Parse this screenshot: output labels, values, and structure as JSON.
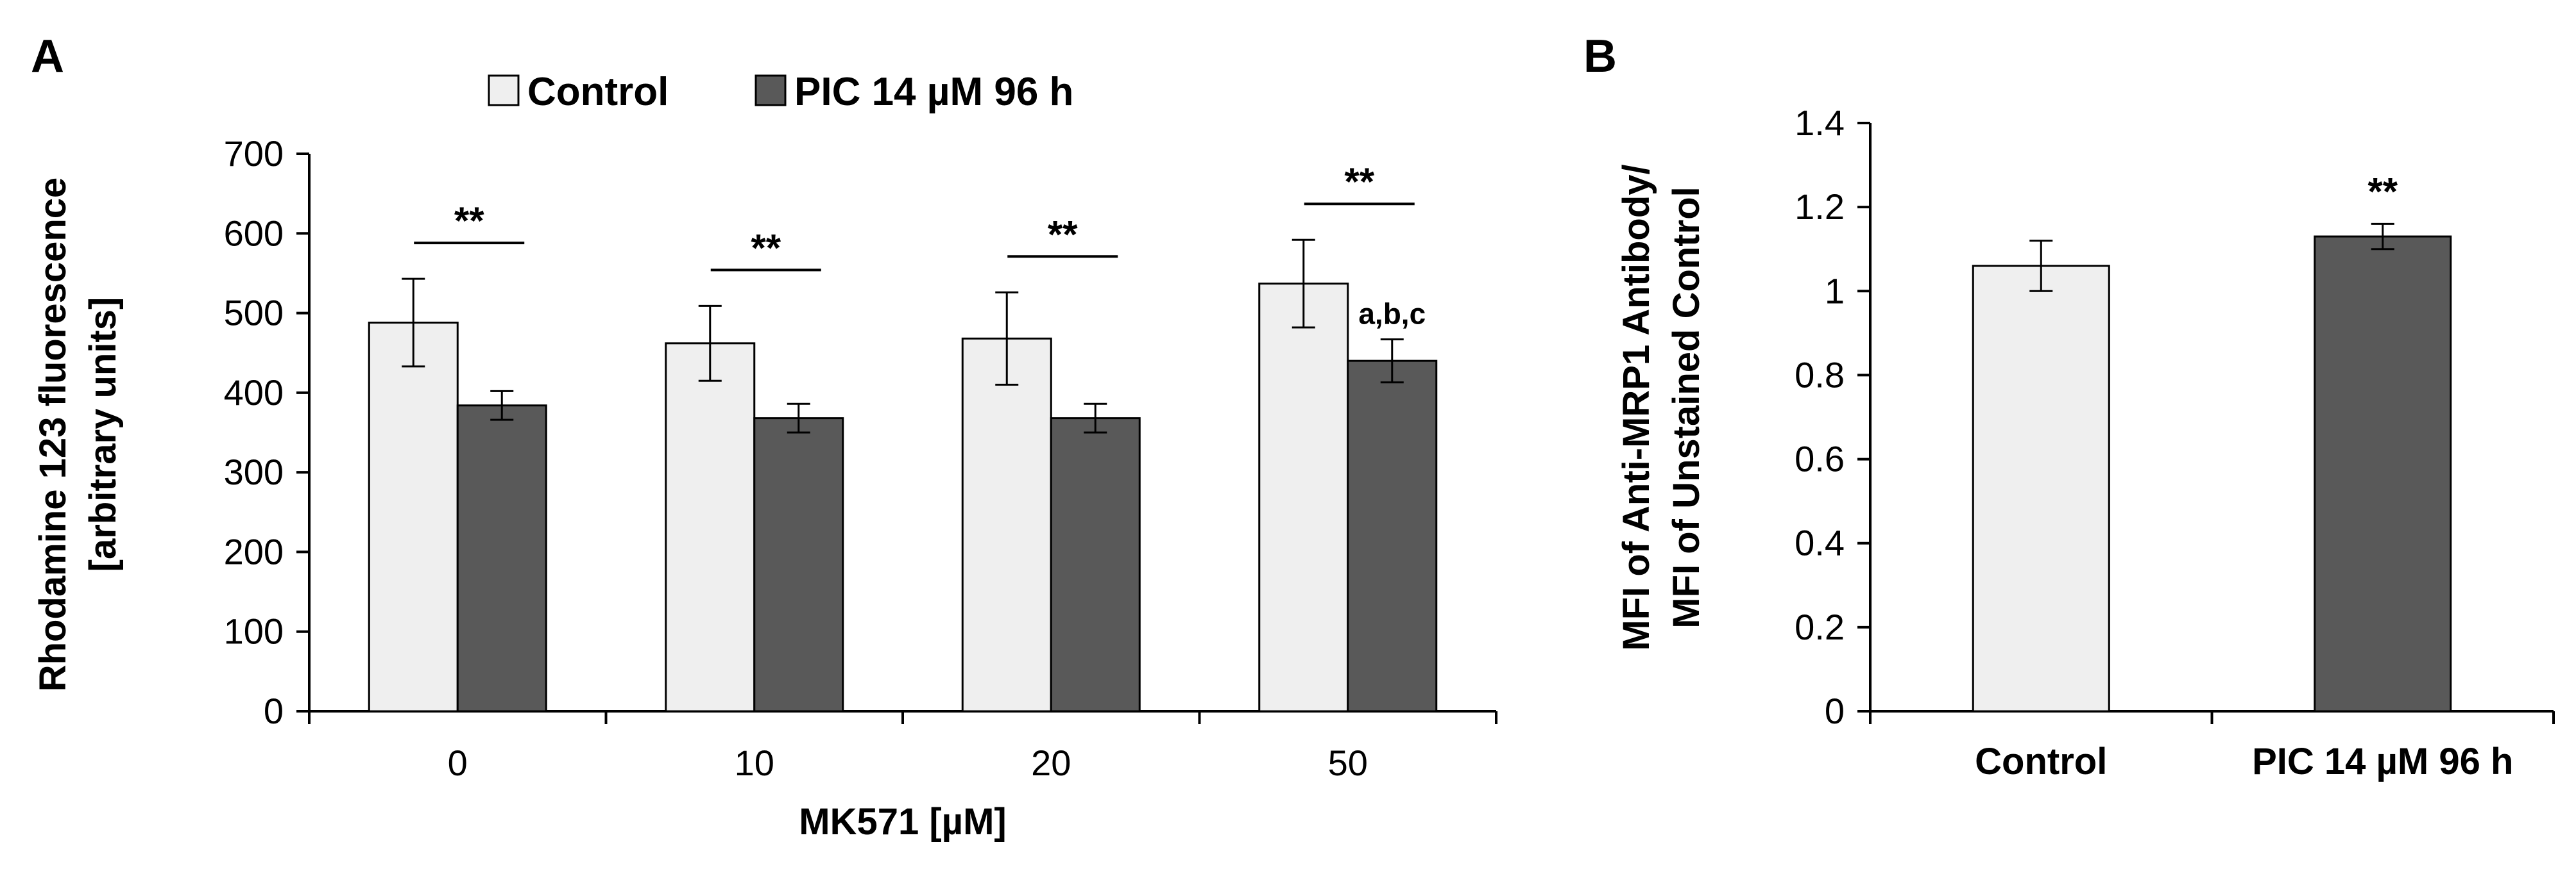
{
  "colors": {
    "control": "#efefef",
    "pic": "#595959",
    "stroke": "#000000"
  },
  "chart_data": [
    {
      "type": "bar",
      "panel": "A",
      "title": "",
      "categories": [
        "0",
        "10",
        "20",
        "50"
      ],
      "xlabel": "MK571 [µM]",
      "ylabel_lines": [
        "Rhodamine 123 fluorescence",
        "[arbitrary units]"
      ],
      "ylim": [
        0,
        700
      ],
      "yticks": [
        0,
        100,
        200,
        300,
        400,
        500,
        600,
        700
      ],
      "grid": false,
      "legend_position": "top",
      "series": [
        {
          "name": "Control",
          "values": [
            488,
            462,
            468,
            537
          ],
          "errors": [
            55,
            47,
            58,
            55
          ]
        },
        {
          "name": "PIC 14 µM 96 h",
          "values": [
            384,
            368,
            368,
            440
          ],
          "errors": [
            18,
            18,
            18,
            27
          ]
        }
      ],
      "significance": [
        "**",
        "**",
        "**",
        "**"
      ],
      "annotations": [
        {
          "category": "50",
          "series": "PIC 14 µM 96 h",
          "text": "a,b,c"
        }
      ]
    },
    {
      "type": "bar",
      "panel": "B",
      "title": "",
      "categories": [
        "Control",
        "PIC 14 µM 96 h"
      ],
      "xlabel": "",
      "ylabel_lines": [
        "MFI of Anti-MRP1 Antibody/",
        "MFI of Unstained Control"
      ],
      "ylim": [
        0,
        1.4
      ],
      "yticks": [
        "0",
        "0.2",
        "0.4",
        "0.6",
        "0.8",
        "1",
        "1.2",
        "1.4"
      ],
      "grid": false,
      "values": [
        1.06,
        1.13
      ],
      "errors": [
        0.06,
        0.03
      ],
      "significance": [
        null,
        "**"
      ]
    }
  ]
}
